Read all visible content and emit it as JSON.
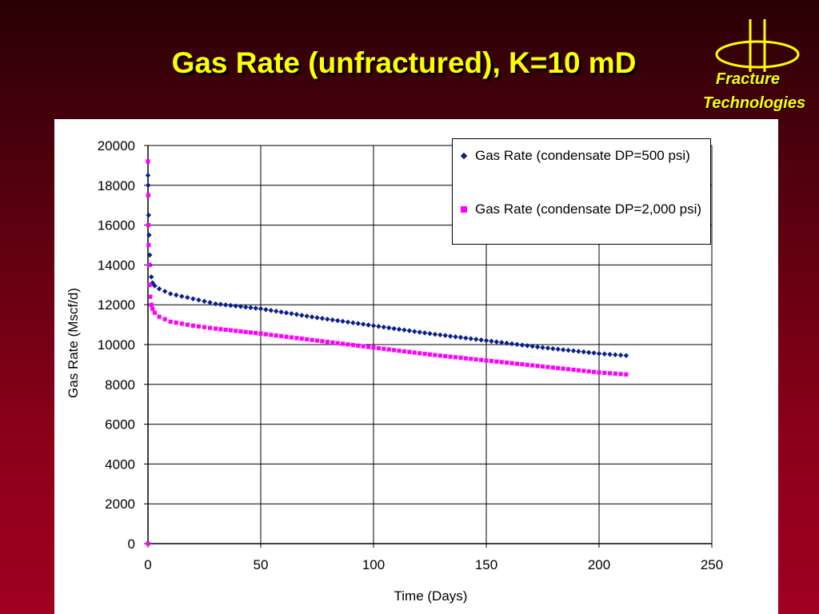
{
  "slide": {
    "title": "Gas Rate (unfractured), K=10 mD",
    "logo_line1": "Fracture",
    "logo_line2": "Technologies"
  },
  "colors": {
    "title": "#ffff00",
    "series1": "#0a1f8a",
    "series2": "#ff00ff"
  },
  "chart_data": {
    "type": "scatter",
    "xlabel": "Time (Days)",
    "ylabel": "Gas Rate (Mscf/d)",
    "xlim": [
      0,
      250
    ],
    "ylim": [
      0,
      20000
    ],
    "xticks": [
      "0",
      "50",
      "100",
      "150",
      "200",
      "250"
    ],
    "yticks": [
      "0",
      "2000",
      "4000",
      "6000",
      "8000",
      "10000",
      "12000",
      "14000",
      "16000",
      "18000",
      "20000"
    ],
    "grid": true,
    "legend_position": "top-right",
    "series": [
      {
        "name": "Gas Rate (condensate DP=500 psi)",
        "marker": "diamond",
        "color": "#0a1f8a",
        "x": [
          0,
          0.1,
          0.2,
          0.3,
          0.5,
          0.8,
          1,
          1.5,
          2,
          3,
          5,
          10,
          20,
          30,
          50,
          75,
          100,
          125,
          150,
          175,
          200,
          212
        ],
        "y": [
          18500,
          18000,
          17500,
          16500,
          15500,
          14500,
          14000,
          13400,
          13100,
          12950,
          12800,
          12550,
          12300,
          12050,
          11800,
          11350,
          10950,
          10550,
          10200,
          9850,
          9550,
          9450
        ]
      },
      {
        "name": "Gas Rate (condensate DP=2,000 psi)",
        "marker": "square",
        "color": "#ff00ff",
        "x": [
          0,
          0,
          0.1,
          0.2,
          0.3,
          0.5,
          0.8,
          1,
          1.5,
          2,
          3,
          5,
          10,
          20,
          30,
          50,
          75,
          100,
          125,
          150,
          175,
          200,
          212
        ],
        "y": [
          0,
          19200,
          17500,
          16000,
          15000,
          14000,
          13000,
          12400,
          12000,
          11800,
          11600,
          11400,
          11150,
          10950,
          10800,
          10550,
          10200,
          9850,
          9500,
          9200,
          8900,
          8600,
          8500
        ]
      }
    ]
  }
}
